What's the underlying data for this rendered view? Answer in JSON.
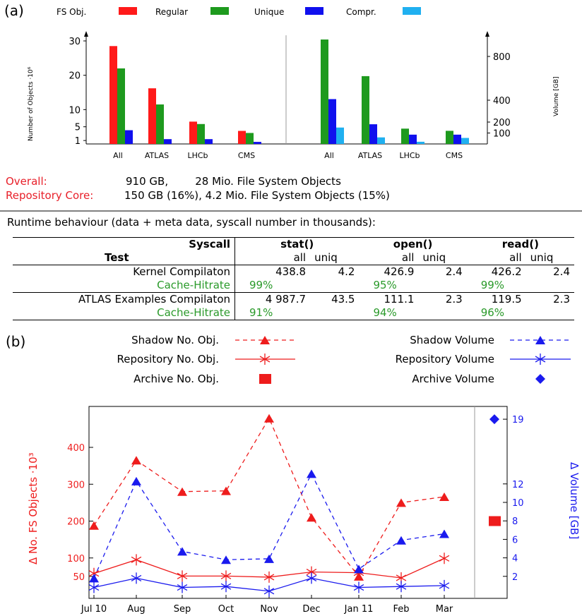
{
  "panel_a_label": "(a)",
  "panel_b_label": "(b)",
  "legend_a": {
    "title": "FS Obj.",
    "entries": [
      {
        "name": "Regular",
        "color": "#ff1a1a"
      },
      {
        "name": "Unique",
        "color": "#1e9a1e"
      },
      {
        "name": "Compr.",
        "color": "#1010ee"
      },
      {
        "name": "",
        "color": "#20b0f0"
      }
    ]
  },
  "summary": {
    "overall_label": "Overall:",
    "overall_text": "910 GB,        28 Mio. File System Objects",
    "core_label": "Repository Core:",
    "core_text": "150 GB (16%), 4.2 Mio. File System Objects (15%)"
  },
  "runtime_title": "Runtime behaviour (data + meta data, syscall number in thousands):",
  "table": {
    "syscall_label": "Syscall",
    "test_label": "Test",
    "groups": [
      "stat()",
      "open()",
      "read()"
    ],
    "sub": [
      "all",
      "uniq"
    ],
    "rows": [
      {
        "name": "Kernel Compilaton",
        "stat_all": "438.8",
        "stat_uniq": "4.2",
        "open_all": "426.9",
        "open_uniq": "2.4",
        "read_all": "426.2",
        "read_uniq": "2.4",
        "hit_label": "Cache-Hitrate",
        "hit_stat": "99%",
        "hit_open": "95%",
        "hit_read": "99%"
      },
      {
        "name": "ATLAS Examples Compilaton",
        "stat_all": "4 987.7",
        "stat_uniq": "43.5",
        "open_all": "111.1",
        "open_uniq": "2.3",
        "read_all": "119.5",
        "read_uniq": "2.3",
        "hit_label": "Cache-Hitrate",
        "hit_stat": "91%",
        "hit_open": "94%",
        "hit_read": "96%"
      }
    ]
  },
  "legend_b": {
    "left": [
      "Shadow No. Obj.",
      "Repository No. Obj.",
      "Archive No. Obj."
    ],
    "right": [
      "Shadow Volume",
      "Repository Volume",
      "Archive Volume"
    ]
  },
  "chart_data": [
    {
      "type": "bar",
      "ylabel": "Number of Objects ·10⁶",
      "categories": [
        "All",
        "ATLAS",
        "LHCb",
        "CMS"
      ],
      "yticks": [
        1,
        5,
        10,
        20,
        30
      ],
      "ylim": [
        0,
        30
      ],
      "series": [
        {
          "name": "Regular",
          "color": "#ff1a1a",
          "values": [
            28.5,
            16.2,
            6.5,
            3.8
          ]
        },
        {
          "name": "Unique",
          "color": "#1e9a1e",
          "values": [
            22,
            11.5,
            5.8,
            3.2
          ]
        },
        {
          "name": "Compr.",
          "color": "#1010ee",
          "values": [
            4,
            1.4,
            1.4,
            0.6
          ]
        }
      ]
    },
    {
      "type": "bar",
      "ylabel": "Volume [GB]",
      "categories": [
        "All",
        "ATLAS",
        "LHCb",
        "CMS"
      ],
      "yticks": [
        100,
        200,
        400,
        800
      ],
      "ylim": [
        0,
        1000
      ],
      "series": [
        {
          "name": "Unique",
          "color": "#1e9a1e",
          "values": [
            955,
            620,
            140,
            120
          ]
        },
        {
          "name": "Compr.",
          "color": "#1010ee",
          "values": [
            410,
            180,
            85,
            85
          ]
        },
        {
          "name": "",
          "color": "#20b0f0",
          "values": [
            150,
            60,
            20,
            55
          ]
        }
      ]
    },
    {
      "type": "line",
      "x": [
        "Jul 10",
        "Aug",
        "Sep",
        "Oct",
        "Nov",
        "Dec",
        "Jan 11",
        "Feb",
        "Mar"
      ],
      "ylabel_left": "Δ No. FS Objects ·10³",
      "ylabel_right": "Δ Volume [GB]",
      "yticks_left": [
        50,
        100,
        200,
        300,
        400
      ],
      "yticks_right": [
        2,
        4,
        6,
        8,
        10,
        12,
        19
      ],
      "series": [
        {
          "name": "Shadow No. Obj.",
          "axis": "left",
          "color": "#ee1c1c",
          "style": "dashed",
          "marker": "triangle",
          "values": [
            188,
            365,
            280,
            282,
            479,
            210,
            50,
            250,
            266
          ]
        },
        {
          "name": "Repository No. Obj.",
          "axis": "left",
          "color": "#ee1c1c",
          "style": "solid",
          "marker": "star",
          "values": [
            58,
            95,
            51,
            51,
            48,
            62,
            60,
            46,
            99
          ]
        },
        {
          "name": "Shadow Volume",
          "axis": "right",
          "color": "#1a1aee",
          "style": "dashed",
          "marker": "triangle",
          "values": [
            1.8,
            12.3,
            4.7,
            3.8,
            3.9,
            13.1,
            2.8,
            5.9,
            6.6
          ]
        },
        {
          "name": "Repository Volume",
          "axis": "right",
          "color": "#1a1aee",
          "style": "solid",
          "marker": "star",
          "values": [
            0.8,
            1.8,
            0.8,
            0.9,
            0.4,
            1.8,
            0.8,
            0.9,
            1.0
          ]
        }
      ],
      "archive_no_obj": 200,
      "archive_volume": 19
    }
  ]
}
